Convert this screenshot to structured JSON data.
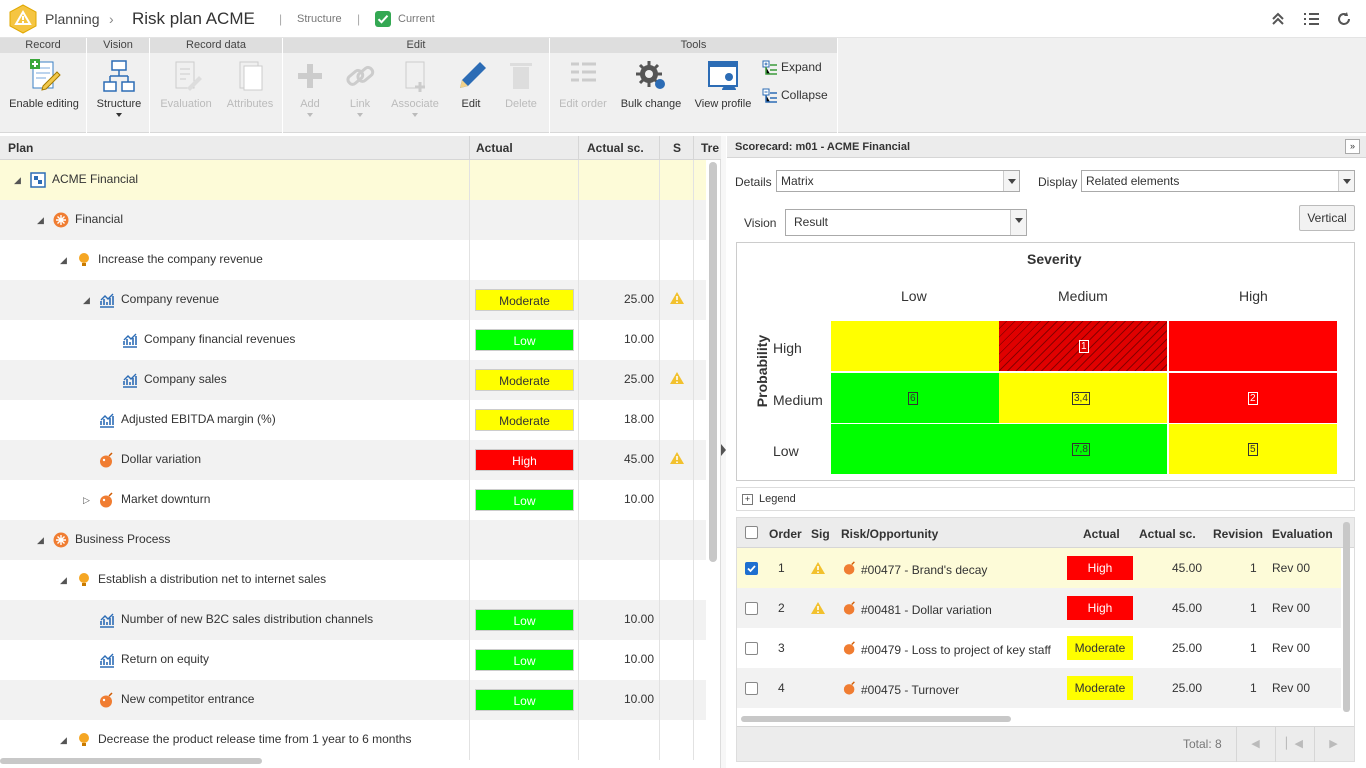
{
  "header": {
    "module": "Planning",
    "title": "Risk plan ACME",
    "structure_link": "Structure",
    "current_label": "Current"
  },
  "ribbon": {
    "groups": [
      "Record",
      "Vision",
      "Record data",
      "Edit",
      "Tools"
    ],
    "record": {
      "enable_editing": "Enable editing"
    },
    "vision": {
      "structure": "Structure"
    },
    "record_data": {
      "evaluation": "Evaluation",
      "attributes": "Attributes"
    },
    "edit": {
      "add": "Add",
      "link": "Link",
      "associate": "Associate",
      "edit": "Edit",
      "delete": "Delete"
    },
    "tools": {
      "edit_order": "Edit order",
      "bulk_change": "Bulk change",
      "view_profile": "View profile",
      "expand": "Expand",
      "collapse": "Collapse"
    }
  },
  "plan_table": {
    "columns": [
      "Plan",
      "Actual",
      "Actual sc.",
      "S",
      "Tre"
    ],
    "rows": [
      {
        "label": "ACME Financial",
        "actual": "",
        "score": "",
        "warn": false
      },
      {
        "label": "Financial",
        "actual": "",
        "score": "",
        "warn": false
      },
      {
        "label": "Increase the company revenue",
        "actual": "",
        "score": "",
        "warn": false
      },
      {
        "label": "Company revenue",
        "actual": "Moderate",
        "score": "25.00",
        "warn": true
      },
      {
        "label": "Company financial revenues",
        "actual": "Low",
        "score": "10.00",
        "warn": false
      },
      {
        "label": "Company sales",
        "actual": "Moderate",
        "score": "25.00",
        "warn": true
      },
      {
        "label": "Adjusted EBITDA margin (%)",
        "actual": "Moderate",
        "score": "18.00",
        "warn": false
      },
      {
        "label": "Dollar variation",
        "actual": "High",
        "score": "45.00",
        "warn": true
      },
      {
        "label": "Market downturn",
        "actual": "Low",
        "score": "10.00",
        "warn": false
      },
      {
        "label": "Business Process",
        "actual": "",
        "score": "",
        "warn": false
      },
      {
        "label": "Establish a distribution net to internet sales",
        "actual": "",
        "score": "",
        "warn": false
      },
      {
        "label": "Number of new B2C sales distribution channels",
        "actual": "Low",
        "score": "10.00",
        "warn": false
      },
      {
        "label": "Return on equity",
        "actual": "Low",
        "score": "10.00",
        "warn": false
      },
      {
        "label": "New competitor entrance",
        "actual": "Low",
        "score": "10.00",
        "warn": false
      },
      {
        "label": "Decrease the product release time from 1 year to 6 months",
        "actual": "",
        "score": "",
        "warn": false
      }
    ]
  },
  "scorecard": {
    "title": "Scorecard: m01 - ACME Financial",
    "details_label": "Details",
    "details_value": "Matrix",
    "display_label": "Display",
    "display_value": "Related elements",
    "vision_label": "Vision",
    "vision_value": "Result",
    "vertical_button": "Vertical",
    "matrix": {
      "x_title": "Severity",
      "y_title": "Probability",
      "columns": [
        "Low",
        "Medium",
        "High"
      ],
      "rows": [
        "High",
        "Medium",
        "Low"
      ],
      "cells": [
        {
          "label": "1"
        },
        {
          "label": "6"
        },
        {
          "label": "3,4"
        },
        {
          "label": "2"
        },
        {
          "label": "7,8"
        },
        {
          "label": "5"
        }
      ]
    },
    "legend_label": "Legend"
  },
  "risk_grid": {
    "columns": [
      "Order",
      "Sig",
      "Risk/Opportunity",
      "Actual",
      "Actual sc.",
      "Revision",
      "Evaluation"
    ],
    "rows": [
      {
        "order": "1",
        "name": "#00477 - Brand's decay",
        "actual": "High",
        "score": "45.00",
        "revision": "1",
        "evaluation": "Rev 00",
        "checked": true,
        "warn": true
      },
      {
        "order": "2",
        "name": "#00481 - Dollar variation",
        "actual": "High",
        "score": "45.00",
        "revision": "1",
        "evaluation": "Rev 00",
        "checked": false,
        "warn": true
      },
      {
        "order": "3",
        "name": "#00479 - Loss to project of key staff",
        "actual": "Moderate",
        "score": "25.00",
        "revision": "1",
        "evaluation": "Rev 00",
        "checked": false,
        "warn": false
      },
      {
        "order": "4",
        "name": "#00475 - Turnover",
        "actual": "Moderate",
        "score": "25.00",
        "revision": "1",
        "evaluation": "Rev 00",
        "checked": false,
        "warn": false
      }
    ],
    "total": "Total: 8"
  },
  "colors": {
    "low": "#00ff00",
    "moderate": "#ffff00",
    "high": "#ff0000",
    "selected_row": "#fdfbd8"
  }
}
